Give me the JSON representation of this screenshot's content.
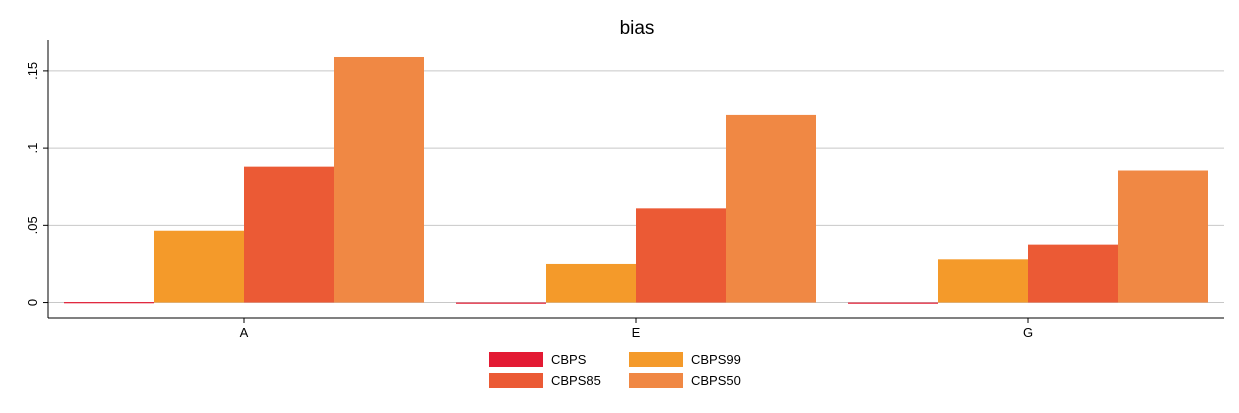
{
  "chart_data": {
    "type": "bar",
    "title": "bias",
    "xlabel": "",
    "ylabel": "",
    "categories": [
      "A",
      "E",
      "G"
    ],
    "ylim": [
      -0.01,
      0.17
    ],
    "yticks": [
      0,
      0.05,
      0.1,
      0.15
    ],
    "ytick_labels": [
      "0",
      ".05",
      ".1",
      ".15"
    ],
    "grid": true,
    "legend_position": "bottom",
    "series": [
      {
        "name": "CBPS",
        "color": "#e31a33",
        "values": [
          0.0003,
          -0.0003,
          -0.0003
        ]
      },
      {
        "name": "CBPS99",
        "color": "#f49a2a",
        "values": [
          0.0465,
          0.025,
          0.028
        ]
      },
      {
        "name": "CBPS85",
        "color": "#eb5a35",
        "values": [
          0.088,
          0.061,
          0.0375
        ]
      },
      {
        "name": "CBPS50",
        "color": "#f08844",
        "values": [
          0.159,
          0.1215,
          0.0855
        ]
      }
    ],
    "legend_order": [
      "CBPS",
      "CBPS99",
      "CBPS85",
      "CBPS50"
    ]
  }
}
